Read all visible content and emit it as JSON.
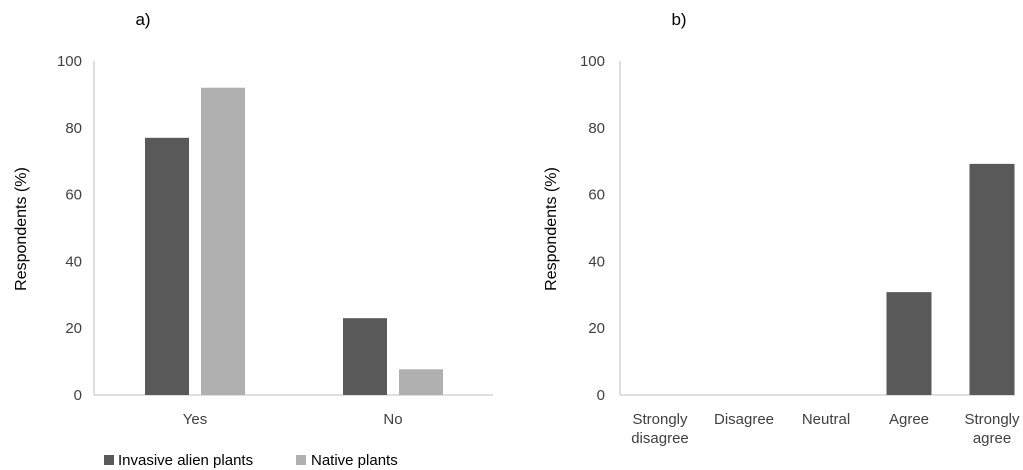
{
  "chart_data": [
    {
      "panel_label": "a)",
      "type": "bar",
      "categories": [
        "Yes",
        "No"
      ],
      "series": [
        {
          "name": "Invasive alien plants",
          "color": "#595959",
          "values": [
            77,
            23
          ]
        },
        {
          "name": "Native plants",
          "color": "#b0b0b0",
          "values": [
            92,
            7.7
          ]
        }
      ],
      "ylabel": "Respondents (%)",
      "xlabel": "",
      "ylim": [
        0,
        100
      ],
      "yticks": [
        0,
        20,
        40,
        60,
        80,
        100
      ],
      "grid": false,
      "legend": "bottom-left"
    },
    {
      "panel_label": "b)",
      "type": "bar",
      "categories": [
        [
          "Strongly",
          "disagree"
        ],
        [
          "Disagree"
        ],
        [
          "Neutral"
        ],
        [
          "Agree"
        ],
        [
          "Strongly",
          "agree"
        ]
      ],
      "series": [
        {
          "color": "#595959",
          "values": [
            0,
            0,
            0,
            30.8,
            69.2
          ]
        }
      ],
      "ylabel": "Respondents (%)",
      "xlabel": "",
      "ylim": [
        0,
        100
      ],
      "yticks": [
        0,
        20,
        40,
        60,
        80,
        100
      ],
      "grid": false,
      "legend": "none"
    }
  ]
}
